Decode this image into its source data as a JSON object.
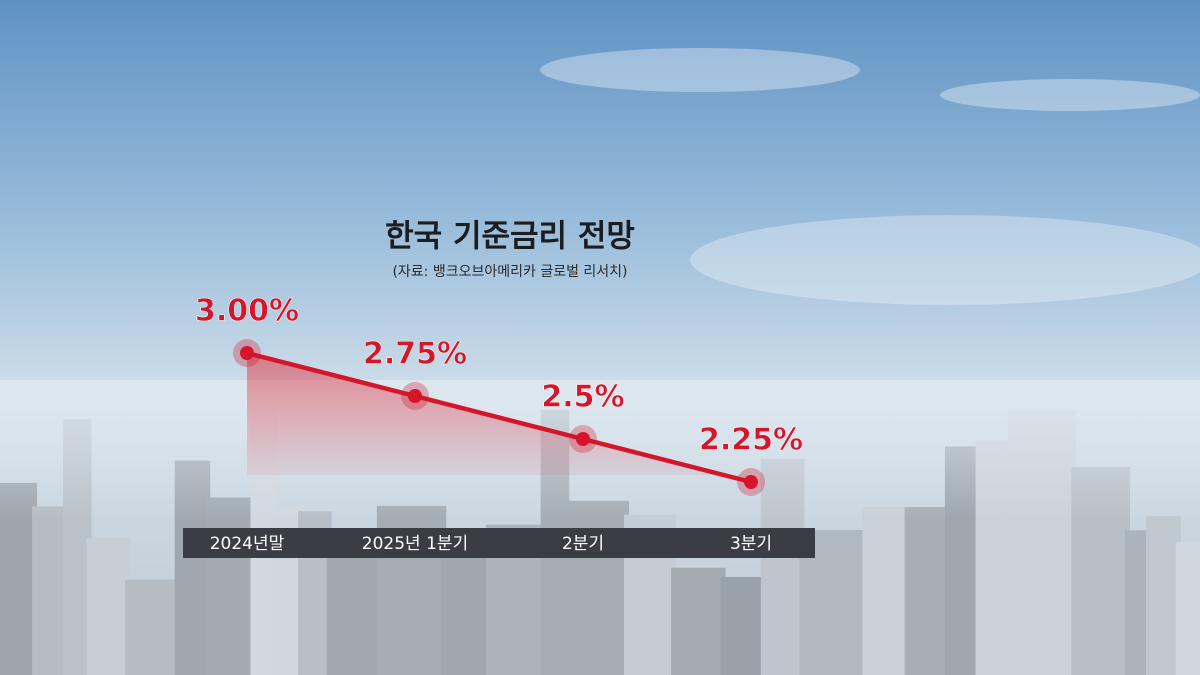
{
  "chart_data": {
    "type": "line",
    "title": "한국 기준금리 전망",
    "subtitle": "(자료: 뱅크오브아메리카 글로벌 리서치)",
    "categories": [
      "2024년말",
      "2025년 1분기",
      "2분기",
      "3분기"
    ],
    "values": [
      3.0,
      2.75,
      2.5,
      2.25
    ],
    "value_labels": [
      "3.00%",
      "2.75%",
      "2.5%",
      "2.25%"
    ],
    "color": "#d4152a"
  }
}
